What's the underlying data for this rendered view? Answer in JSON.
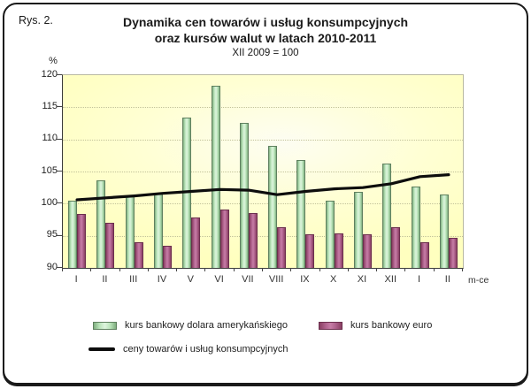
{
  "figure_label": "Rys. 2.",
  "title_line1": "Dynamika cen towarów i usług konsumpcyjnych",
  "title_line2": "oraz kursów walut w latach 2010-2011",
  "subtitle": "XII 2009 = 100",
  "y_axis_unit": "%",
  "x_axis_unit": "m-ce",
  "chart_data": {
    "type": "bar+line",
    "categories": [
      "I",
      "II",
      "III",
      "IV",
      "V",
      "VI",
      "VII",
      "VIII",
      "IX",
      "X",
      "XI",
      "XII",
      "I",
      "II"
    ],
    "series": [
      {
        "name": "kurs bankowy dolara amerykańskiego",
        "type": "bar",
        "color": "#b9e3b9",
        "values": [
          100.5,
          103.6,
          101.1,
          101.6,
          113.4,
          118.3,
          112.6,
          109.0,
          106.8,
          100.4,
          101.8,
          106.3,
          102.6,
          101.4
        ]
      },
      {
        "name": "kurs bankowy euro",
        "type": "bar",
        "color": "#b26590",
        "values": [
          98.4,
          97.0,
          94.0,
          93.5,
          97.9,
          99.1,
          98.5,
          96.3,
          95.3,
          95.4,
          95.3,
          96.4,
          94.0,
          94.7
        ]
      },
      {
        "name": "ceny towarów i usług konsumpcyjnych",
        "type": "line",
        "color": "#0d0d0d",
        "values": [
          100.6,
          100.9,
          101.2,
          101.6,
          101.9,
          102.2,
          102.1,
          101.4,
          101.9,
          102.3,
          102.5,
          103.1,
          104.2,
          104.5
        ]
      }
    ],
    "ylim": [
      90,
      120
    ],
    "yticks": [
      90,
      95,
      100,
      105,
      110,
      115,
      120
    ],
    "grid": "dotted horizontal at each ytick",
    "legend_position": "bottom"
  }
}
